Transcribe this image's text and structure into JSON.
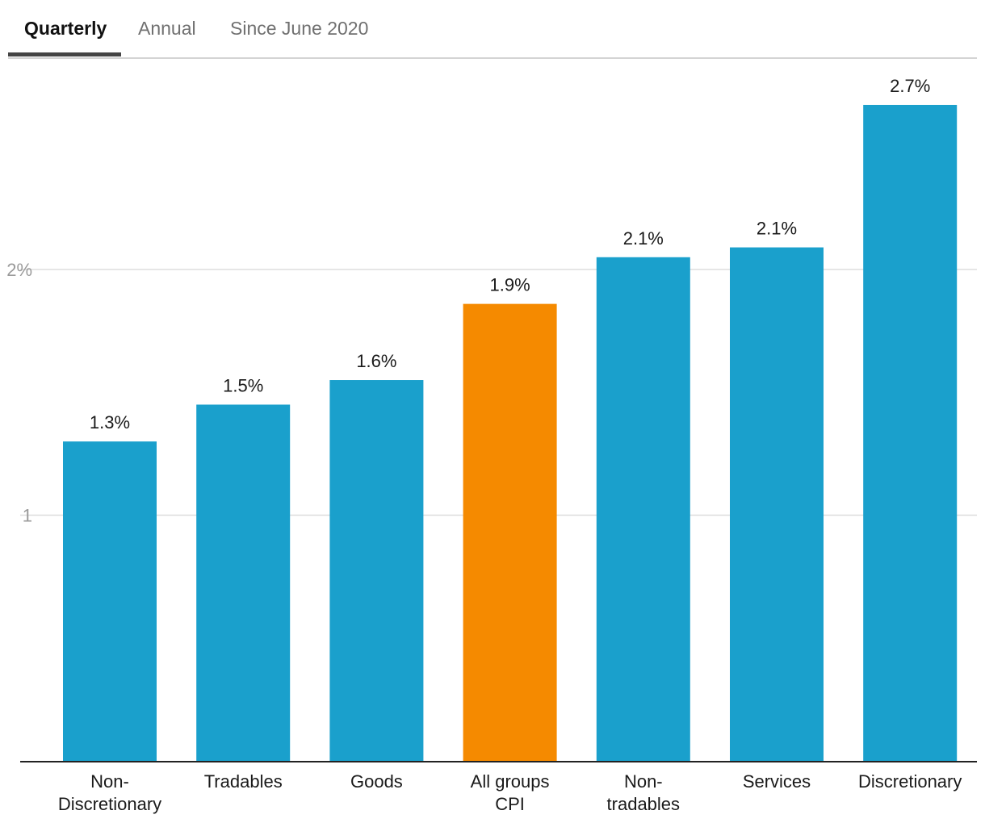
{
  "tabs": [
    {
      "label": "Quarterly",
      "active": true
    },
    {
      "label": "Annual",
      "active": false
    },
    {
      "label": "Since June 2020",
      "active": false
    }
  ],
  "colors": {
    "bar": "#1aa0cc",
    "highlight": "#f58a00",
    "grid": "#dddddd",
    "axis": "#222222"
  },
  "chart_data": {
    "type": "bar",
    "categories": [
      [
        "Non-",
        "Discretionary"
      ],
      [
        "Tradables"
      ],
      [
        "Goods"
      ],
      [
        "All groups",
        "CPI"
      ],
      [
        "Non-",
        "tradables"
      ],
      [
        "Services"
      ],
      [
        "Discretionary"
      ]
    ],
    "values": [
      1.3,
      1.45,
      1.55,
      1.86,
      2.05,
      2.09,
      2.67
    ],
    "value_labels": [
      "1.3%",
      "1.5%",
      "1.6%",
      "1.9%",
      "2.1%",
      "2.1%",
      "2.7%"
    ],
    "highlight_index": 3,
    "yticks": [
      {
        "value": 1,
        "label": "1"
      },
      {
        "value": 2,
        "label": "2%"
      }
    ],
    "ylim": [
      0,
      2.9
    ],
    "grid": true,
    "xlabel": "",
    "ylabel": ""
  }
}
